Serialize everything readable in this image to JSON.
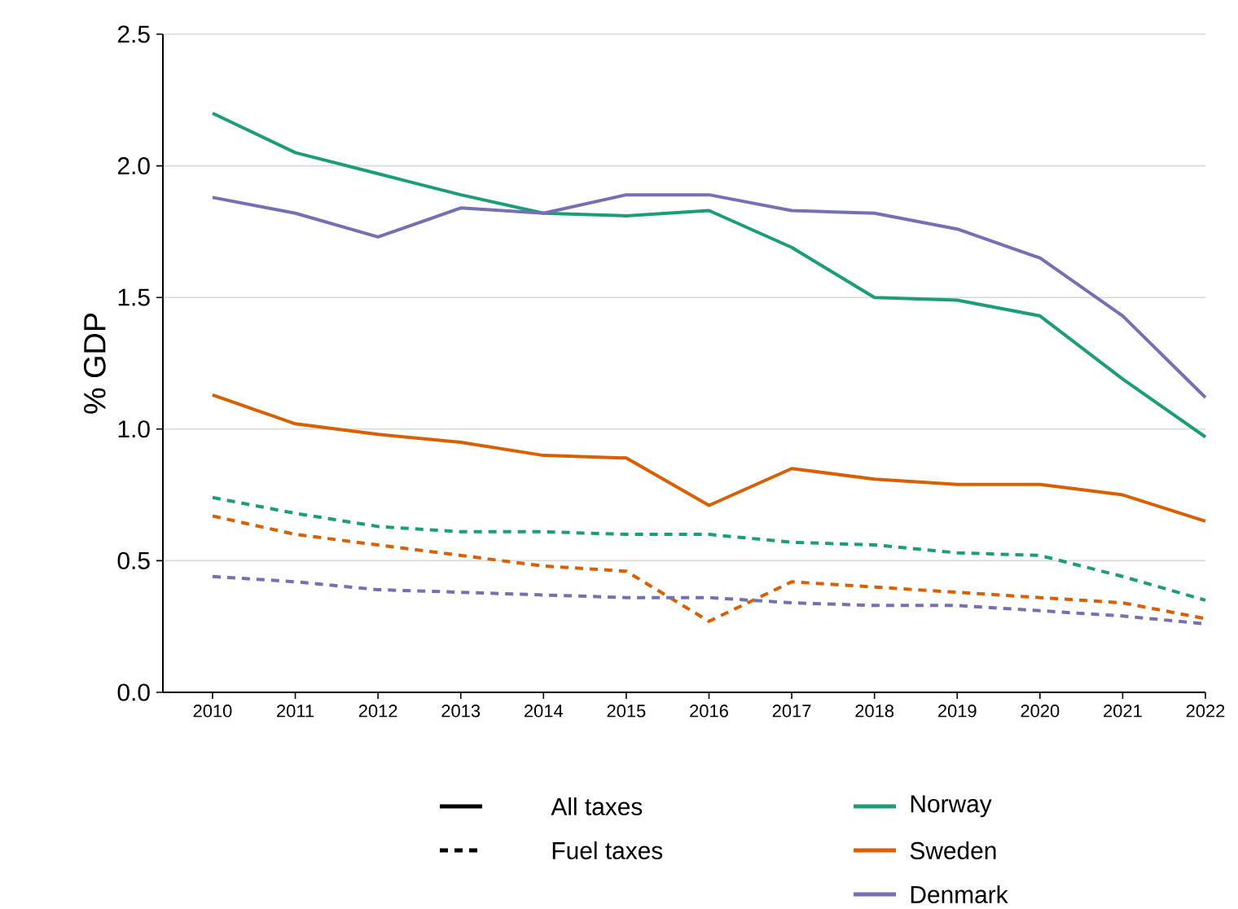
{
  "chart_data": {
    "type": "line",
    "ylabel": "% GDP",
    "x": [
      2010,
      2011,
      2012,
      2013,
      2014,
      2015,
      2016,
      2017,
      2018,
      2019,
      2020,
      2021,
      2022
    ],
    "xlim": [
      2009.4,
      2022
    ],
    "xticks": [
      2010,
      2011,
      2012,
      2013,
      2014,
      2015,
      2016,
      2017,
      2018,
      2019,
      2020,
      2021,
      2022
    ],
    "ylim": [
      0,
      2.5
    ],
    "yticks": [
      {
        "value": 0,
        "label": "0.0"
      },
      {
        "value": 0.5,
        "label": "0.5"
      },
      {
        "value": 1,
        "label": "1.0"
      },
      {
        "value": 1.5,
        "label": "1.5"
      },
      {
        "value": 2,
        "label": "2.0"
      },
      {
        "value": 2.5,
        "label": "2.5"
      }
    ],
    "grid": "y",
    "legend": "bottom",
    "marker": "none",
    "annotations": [
      "All taxes",
      "Fuel taxes"
    ],
    "series": [
      {
        "name": "Norway",
        "color": "#1b9e77",
        "line_style": "solid",
        "values": [
          2.2,
          2.05,
          1.97,
          1.89,
          1.82,
          1.81,
          1.83,
          1.69,
          1.5,
          1.49,
          1.43,
          1.19,
          0.97
        ]
      },
      {
        "name": "Sweden",
        "color": "#d95f02",
        "line_style": "solid",
        "values": [
          1.13,
          1.02,
          0.98,
          0.95,
          0.9,
          0.89,
          0.71,
          0.85,
          0.81,
          0.79,
          0.79,
          0.75,
          0.65
        ]
      },
      {
        "name": "Denmark",
        "color": "#7570b3",
        "line_style": "solid",
        "values": [
          1.88,
          1.82,
          1.73,
          1.84,
          1.82,
          1.89,
          1.89,
          1.83,
          1.82,
          1.76,
          1.65,
          1.43,
          1.12
        ]
      },
      {
        "color": "#1b9e77",
        "line_style": "dashed",
        "values": [
          0.74,
          0.68,
          0.63,
          0.61,
          0.61,
          0.6,
          0.6,
          0.57,
          0.56,
          0.53,
          0.52,
          0.44,
          0.35
        ]
      },
      {
        "color": "#d95f02",
        "line_style": "dashed",
        "values": [
          0.67,
          0.6,
          0.56,
          0.52,
          0.48,
          0.46,
          0.27,
          0.42,
          0.4,
          0.38,
          0.36,
          0.34,
          0.28
        ]
      },
      {
        "color": "#7570b3",
        "line_style": "dashed",
        "values": [
          0.44,
          0.42,
          0.39,
          0.38,
          0.37,
          0.36,
          0.36,
          0.34,
          0.33,
          0.33,
          0.31,
          0.29,
          0.26
        ]
      }
    ]
  }
}
